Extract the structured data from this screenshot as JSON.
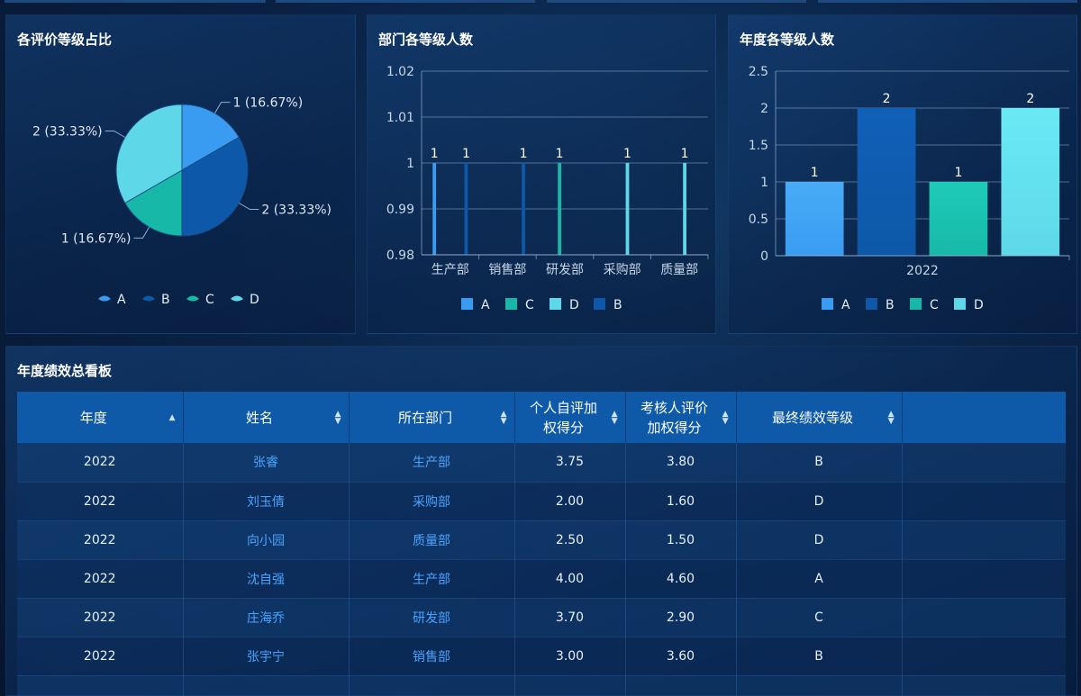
{
  "pie_panel": {
    "title": "各评价等级占比"
  },
  "dept_panel": {
    "title": "部门各等级人数"
  },
  "year_panel": {
    "title": "年度各等级人数"
  },
  "table_panel": {
    "title": "年度绩效总看板"
  },
  "colors": {
    "A": "#3a9cf0",
    "B": "#0d58a8",
    "C": "#17b8a8",
    "D": "#5ed8e8"
  },
  "chart_data": [
    {
      "type": "pie",
      "title": "各评价等级占比",
      "slices": [
        {
          "name": "A",
          "value": 1,
          "label": "1 (16.67%)"
        },
        {
          "name": "B",
          "value": 2,
          "label": "2 (33.33%)"
        },
        {
          "name": "C",
          "value": 1,
          "label": "1 (16.67%)"
        },
        {
          "name": "D",
          "value": 2,
          "label": "2 (33.33%)"
        }
      ],
      "legend": [
        "A",
        "B",
        "C",
        "D"
      ],
      "legend_position": "bottom"
    },
    {
      "type": "bar",
      "title": "部门各等级人数",
      "categories": [
        "生产部",
        "销售部",
        "研发部",
        "采购部",
        "质量部"
      ],
      "series": [
        {
          "name": "A",
          "values": [
            1,
            null,
            null,
            null,
            null
          ]
        },
        {
          "name": "C",
          "values": [
            null,
            null,
            1,
            null,
            null
          ]
        },
        {
          "name": "D",
          "values": [
            null,
            null,
            null,
            1,
            1
          ]
        },
        {
          "name": "B",
          "values": [
            1,
            1,
            null,
            null,
            null
          ]
        }
      ],
      "ylim": [
        0.98,
        1.02
      ],
      "yticks": [
        "0.98",
        "0.99",
        "1",
        "1.01",
        "1.02"
      ],
      "data_labels": true,
      "grid": true,
      "legend_position": "bottom"
    },
    {
      "type": "bar",
      "title": "年度各等级人数",
      "categories": [
        "2022"
      ],
      "series": [
        {
          "name": "A",
          "values": [
            1
          ]
        },
        {
          "name": "B",
          "values": [
            2
          ]
        },
        {
          "name": "C",
          "values": [
            1
          ]
        },
        {
          "name": "D",
          "values": [
            2
          ]
        }
      ],
      "ylim": [
        0,
        2.5
      ],
      "yticks": [
        "0",
        "0.5",
        "1",
        "1.5",
        "2",
        "2.5"
      ],
      "data_labels": true,
      "grid": true,
      "legend_position": "bottom"
    }
  ],
  "table": {
    "headers": [
      {
        "label": "年度",
        "lines": [
          "年度"
        ],
        "sort": "asc"
      },
      {
        "label": "姓名",
        "lines": [
          "姓名"
        ],
        "sort": "both"
      },
      {
        "label": "所在部门",
        "lines": [
          "所在部门"
        ],
        "sort": "both"
      },
      {
        "label": "个人自评加权得分",
        "lines": [
          "个人自评加",
          "权得分"
        ],
        "sort": "both"
      },
      {
        "label": "考核人评价加权得分",
        "lines": [
          "考核人评价",
          "加权得分"
        ],
        "sort": "both"
      },
      {
        "label": "最终绩效等级",
        "lines": [
          "最终绩效等级"
        ],
        "sort": "both"
      }
    ],
    "rows": [
      [
        "2022",
        "张睿",
        "生产部",
        "3.75",
        "3.80",
        "B"
      ],
      [
        "2022",
        "刘玉倩",
        "采购部",
        "2.00",
        "1.60",
        "D"
      ],
      [
        "2022",
        "向小园",
        "质量部",
        "2.50",
        "1.50",
        "D"
      ],
      [
        "2022",
        "沈自强",
        "生产部",
        "4.00",
        "4.60",
        "A"
      ],
      [
        "2022",
        "庄海乔",
        "研发部",
        "3.70",
        "2.90",
        "C"
      ],
      [
        "2022",
        "张宇宁",
        "销售部",
        "3.00",
        "3.60",
        "B"
      ]
    ]
  }
}
